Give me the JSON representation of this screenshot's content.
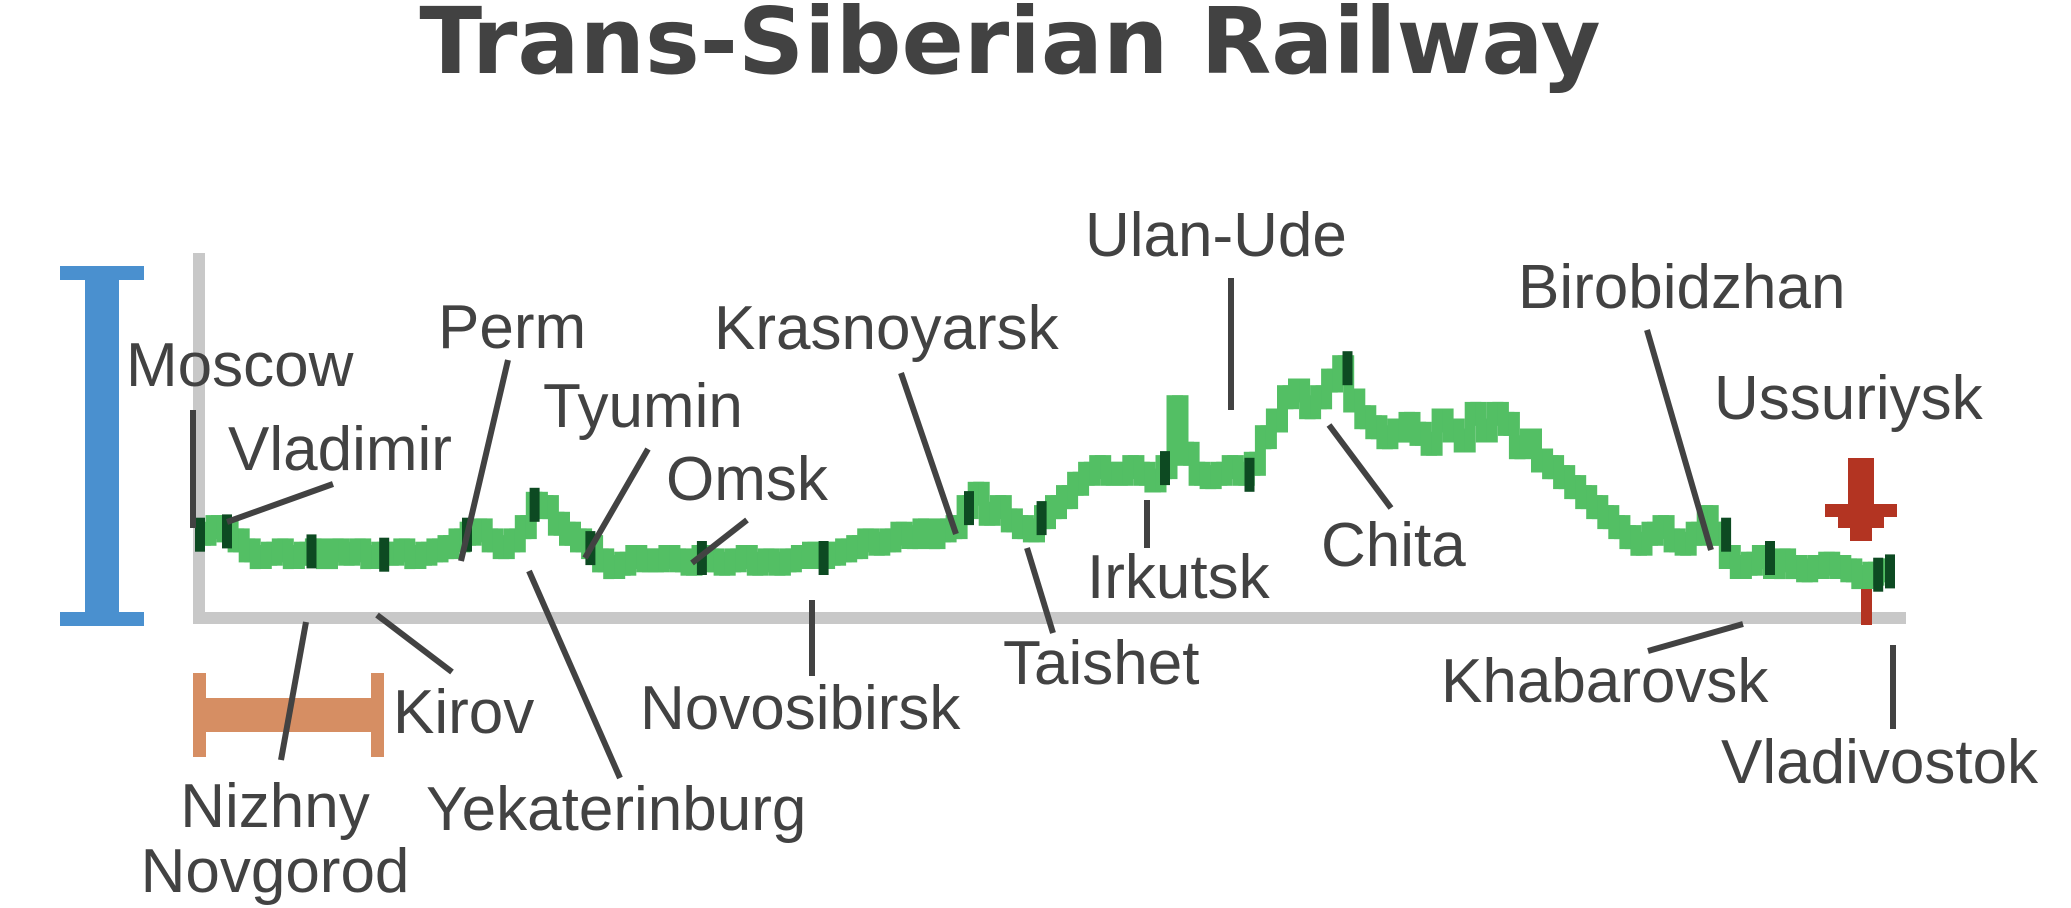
{
  "title": "Trans-Siberian Railway",
  "colors": {
    "title": "#424242",
    "profile": "#53bf64",
    "station_marker": "#0d4a22",
    "axis": "#c8c8c8",
    "leader": "#424242",
    "label": "#424242",
    "height_scale": "#4a90cf",
    "distance_scale": "#d68e63",
    "end_arrow": "#b33422"
  },
  "profile": {
    "description_shape": "elevation-profile",
    "x_range": [
      0,
      1
    ],
    "values": [
      0.22,
      0.24,
      0.23,
      0.2,
      0.17,
      0.15,
      0.16,
      0.17,
      0.15,
      0.16,
      0.17,
      0.15,
      0.17,
      0.16,
      0.17,
      0.15,
      0.16,
      0.16,
      0.17,
      0.15,
      0.16,
      0.17,
      0.18,
      0.2,
      0.22,
      0.23,
      0.2,
      0.18,
      0.2,
      0.24,
      0.31,
      0.3,
      0.25,
      0.22,
      0.2,
      0.18,
      0.14,
      0.12,
      0.13,
      0.15,
      0.14,
      0.14,
      0.15,
      0.14,
      0.13,
      0.15,
      0.14,
      0.13,
      0.14,
      0.15,
      0.13,
      0.14,
      0.13,
      0.14,
      0.15,
      0.16,
      0.15,
      0.16,
      0.17,
      0.18,
      0.2,
      0.19,
      0.2,
      0.22,
      0.21,
      0.23,
      0.21,
      0.23,
      0.24,
      0.3,
      0.34,
      0.28,
      0.3,
      0.26,
      0.24,
      0.23,
      0.27,
      0.3,
      0.33,
      0.37,
      0.4,
      0.42,
      0.4,
      0.4,
      0.42,
      0.4,
      0.38,
      0.42,
      0.6,
      0.46,
      0.4,
      0.39,
      0.4,
      0.42,
      0.4,
      0.43,
      0.51,
      0.56,
      0.63,
      0.65,
      0.6,
      0.63,
      0.68,
      0.72,
      0.62,
      0.57,
      0.54,
      0.51,
      0.53,
      0.55,
      0.52,
      0.49,
      0.56,
      0.53,
      0.5,
      0.58,
      0.53,
      0.58,
      0.55,
      0.48,
      0.5,
      0.44,
      0.42,
      0.39,
      0.36,
      0.33,
      0.3,
      0.27,
      0.24,
      0.21,
      0.19,
      0.22,
      0.24,
      0.2,
      0.19,
      0.22,
      0.27,
      0.22,
      0.15,
      0.12,
      0.13,
      0.15,
      0.12,
      0.14,
      0.12,
      0.11,
      0.12,
      0.13,
      0.12,
      0.11,
      0.09,
      0.1,
      0.11
    ]
  },
  "stations": [
    {
      "name": "Moscow",
      "pos": 0.0
    },
    {
      "name": "Vladimir",
      "pos": 0.016
    },
    {
      "name": "Nizhny Novgorod",
      "pos": 0.066
    },
    {
      "name": "Kirov",
      "pos": 0.109
    },
    {
      "name": "Perm",
      "pos": 0.158
    },
    {
      "name": "Yekaterinburg",
      "pos": 0.198
    },
    {
      "name": "Tyumin",
      "pos": 0.231
    },
    {
      "name": "Omsk",
      "pos": 0.297
    },
    {
      "name": "Novosibirsk",
      "pos": 0.369
    },
    {
      "name": "Krasnoyarsk",
      "pos": 0.455
    },
    {
      "name": "Taishet",
      "pos": 0.498
    },
    {
      "name": "Irkutsk",
      "pos": 0.571
    },
    {
      "name": "Ulan-Ude",
      "pos": 0.621
    },
    {
      "name": "Chita",
      "pos": 0.679
    },
    {
      "name": "Birobidzhan",
      "pos": 0.903
    },
    {
      "name": "Khabarovsk",
      "pos": 0.929
    },
    {
      "name": "Ussuriysk",
      "pos": 0.993
    },
    {
      "name": "Vladivostok",
      "pos": 1.0
    }
  ],
  "labels": {
    "moscow": "Moscow",
    "vladimir": "Vladimir",
    "nizhny_line1": "Nizhny",
    "nizhny_line2": "Novgorod",
    "kirov": "Kirov",
    "perm": "Perm",
    "yekaterinburg": "Yekaterinburg",
    "tyumin": "Tyumin",
    "omsk": "Omsk",
    "novosibirsk": "Novosibirsk",
    "krasnoyarsk": "Krasnoyarsk",
    "taishet": "Taishet",
    "irkutsk": "Irkutsk",
    "ulan_ude": "Ulan-Ude",
    "chita": "Chita",
    "birobidzhan": "Birobidzhan",
    "khabarovsk": "Khabarovsk",
    "ussuriysk": "Ussuriysk",
    "vladivostok": "Vladivostok"
  },
  "icons": {
    "height_scale": "vertical-scale-bar-icon",
    "distance_scale": "horizontal-scale-bar-icon",
    "end_marker": "down-arrow-icon"
  }
}
